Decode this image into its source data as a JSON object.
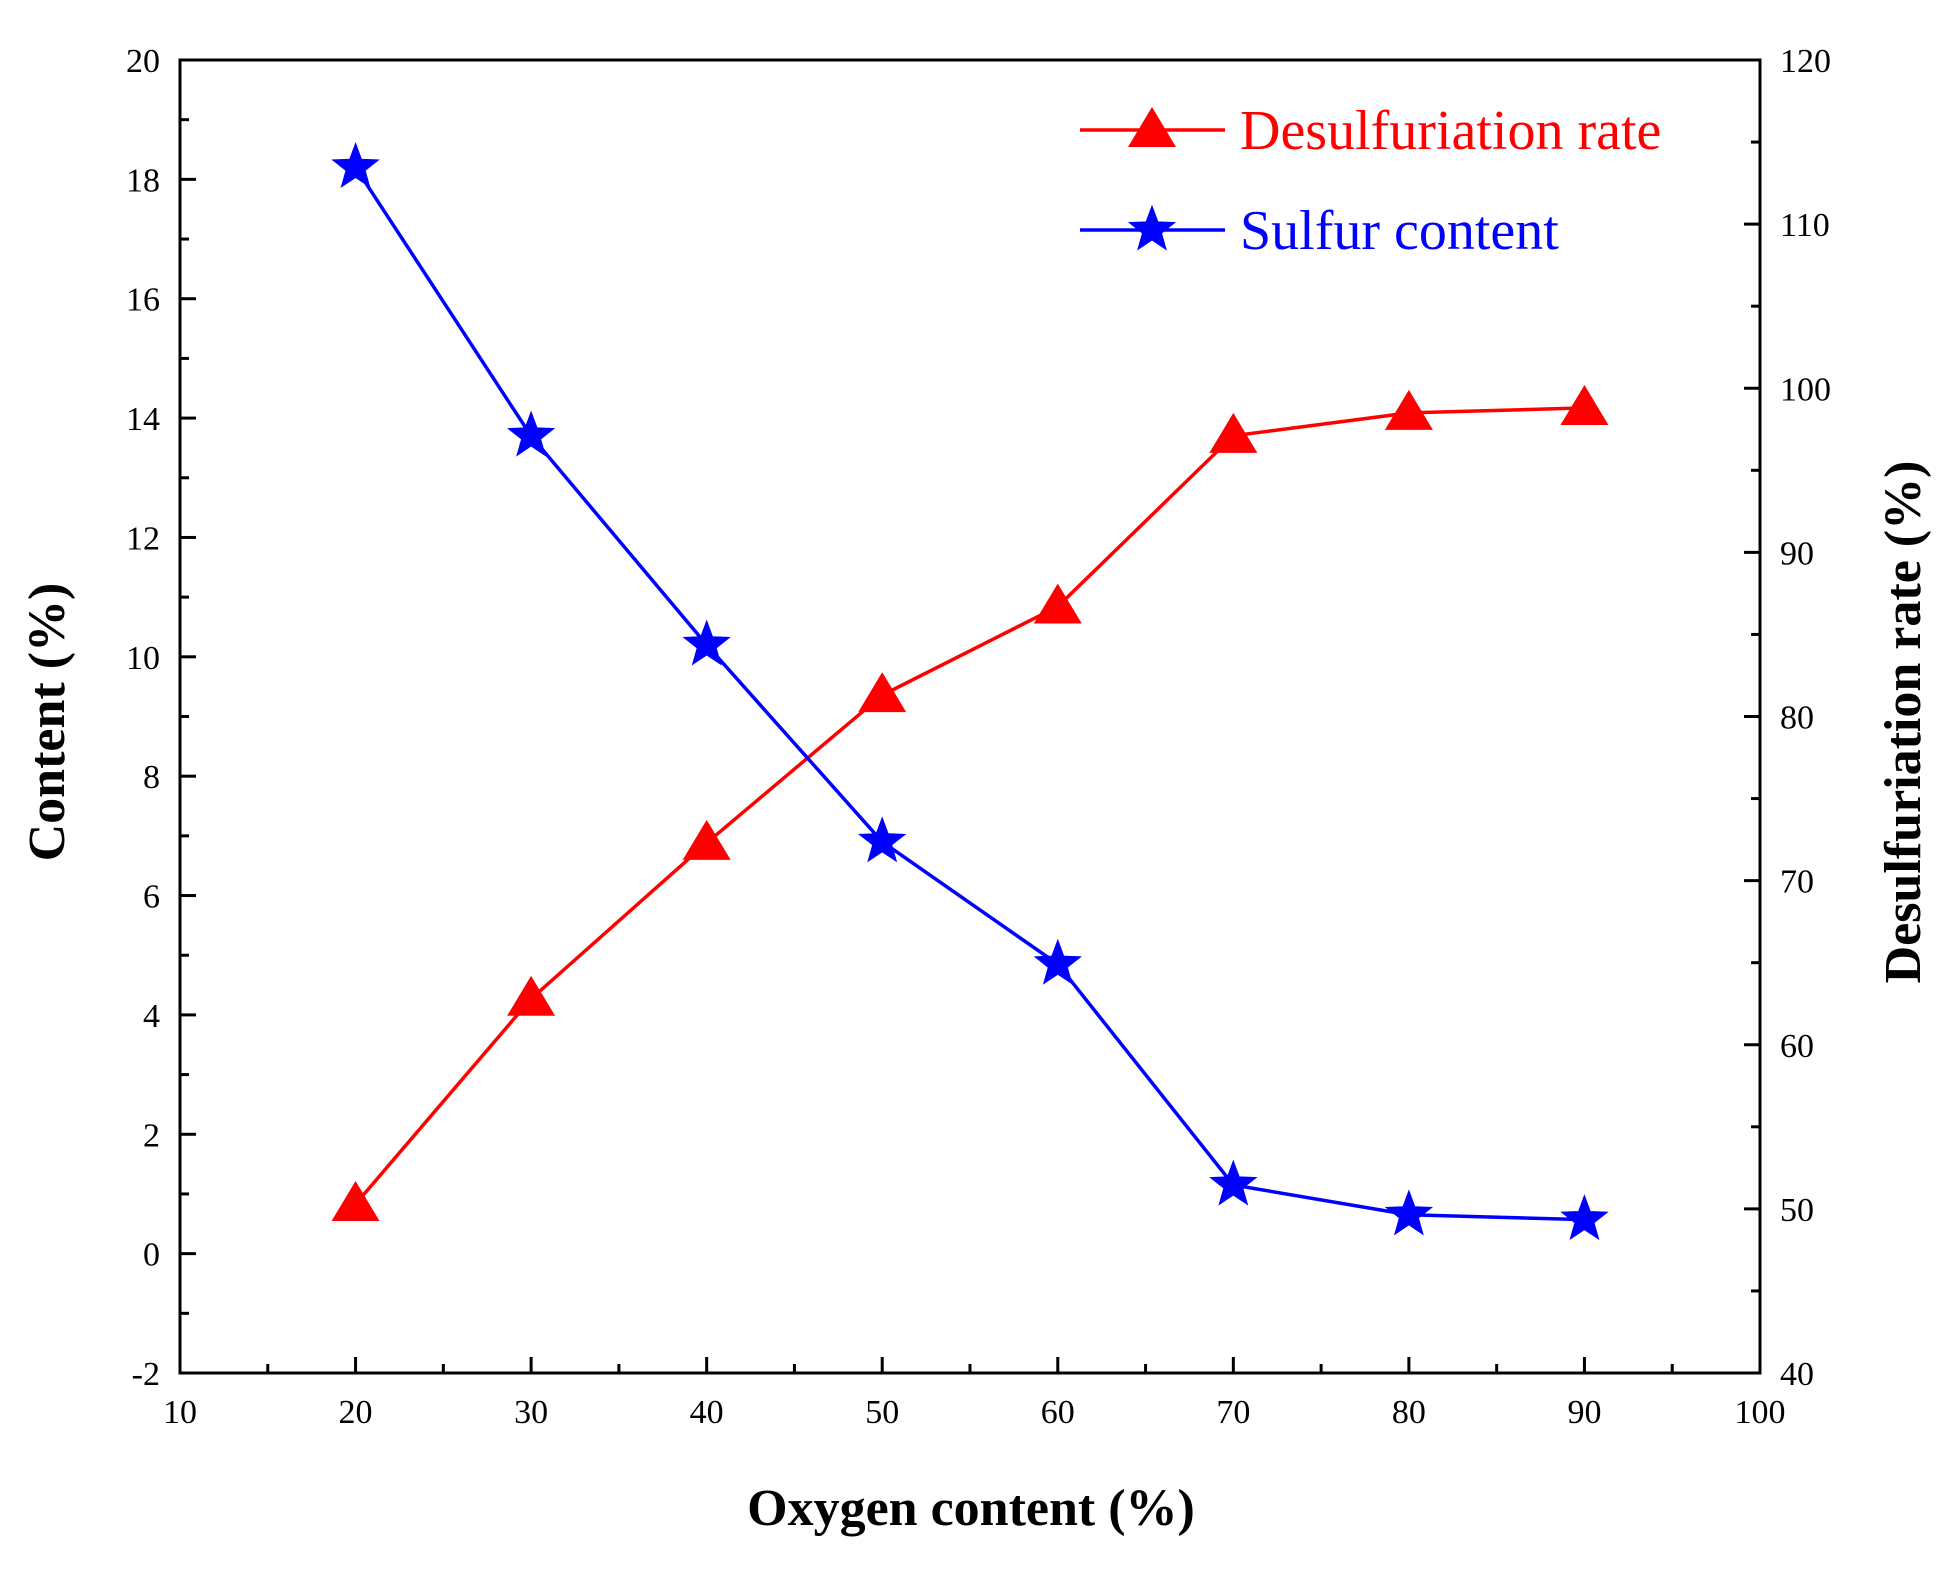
{
  "chart_data": {
    "type": "line",
    "xlabel": "Oxygen content (%)",
    "ylabel_left": "Content (%)",
    "ylabel_right": "Desulfuriation rate (%)",
    "xlim": [
      10,
      100
    ],
    "ylim_left": [
      -2,
      20
    ],
    "ylim_right": [
      40,
      120
    ],
    "x_ticks": [
      10,
      20,
      30,
      40,
      50,
      60,
      70,
      80,
      90,
      100
    ],
    "y_left_ticks": [
      -2,
      0,
      2,
      4,
      6,
      8,
      10,
      12,
      14,
      16,
      18,
      20
    ],
    "y_right_ticks": [
      40,
      50,
      60,
      70,
      80,
      90,
      100,
      110,
      120
    ],
    "legend_position": "top-right",
    "grid": false,
    "series": [
      {
        "name": "Desulfuriation rate",
        "axis": "right",
        "color": "#ff0000",
        "marker": "triangle",
        "x": [
          20,
          30,
          40,
          50,
          60,
          70,
          80,
          90
        ],
        "values": [
          50.3,
          62.8,
          72.3,
          81.3,
          86.7,
          97.1,
          98.5,
          98.8
        ]
      },
      {
        "name": "Sulfur content",
        "axis": "left",
        "color": "#0000ff",
        "marker": "star",
        "x": [
          20,
          30,
          40,
          50,
          60,
          70,
          80,
          90
        ],
        "values": [
          18.2,
          13.7,
          10.2,
          6.9,
          4.85,
          1.15,
          0.65,
          0.57
        ]
      }
    ]
  }
}
